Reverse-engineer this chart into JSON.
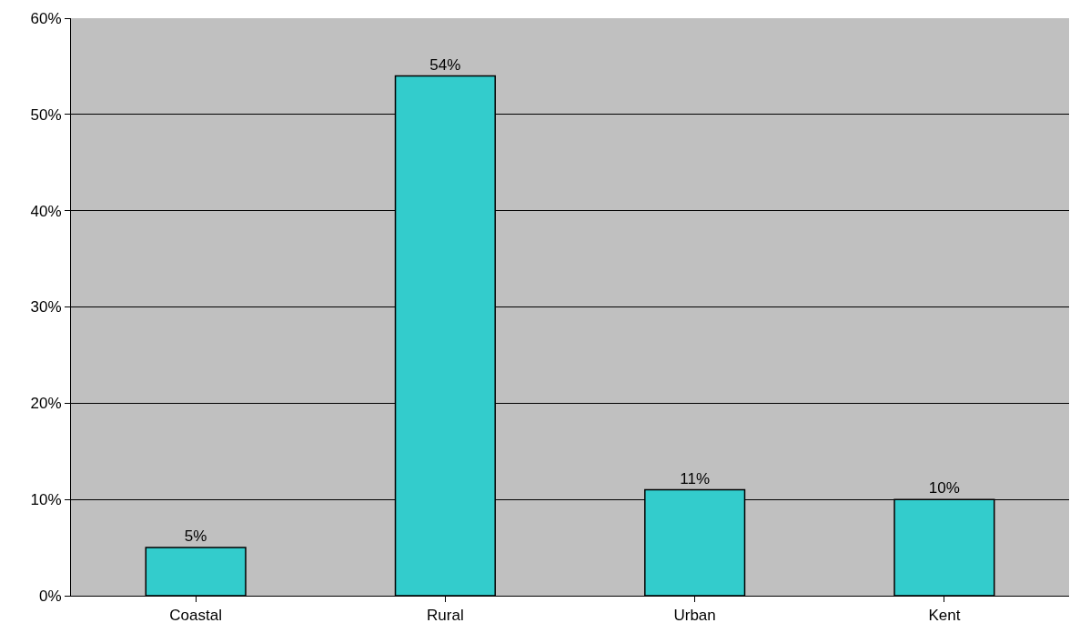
{
  "chart_data": {
    "type": "bar",
    "categories": [
      "Coastal",
      "Rural",
      "Urban",
      "Kent"
    ],
    "values": [
      5,
      54,
      11,
      10
    ],
    "value_labels": [
      "5%",
      "54%",
      "11%",
      "10%"
    ],
    "color": "#33cccc",
    "ylim": [
      0,
      60
    ],
    "yticks": [
      {
        "value": 0,
        "label": "0%"
      },
      {
        "value": 10,
        "label": "10%"
      },
      {
        "value": 20,
        "label": "20%"
      },
      {
        "value": 30,
        "label": "30%"
      },
      {
        "value": 40,
        "label": "40%"
      },
      {
        "value": 50,
        "label": "50%"
      },
      {
        "value": 60,
        "label": "60%"
      }
    ],
    "grid": "y",
    "legend": false
  }
}
